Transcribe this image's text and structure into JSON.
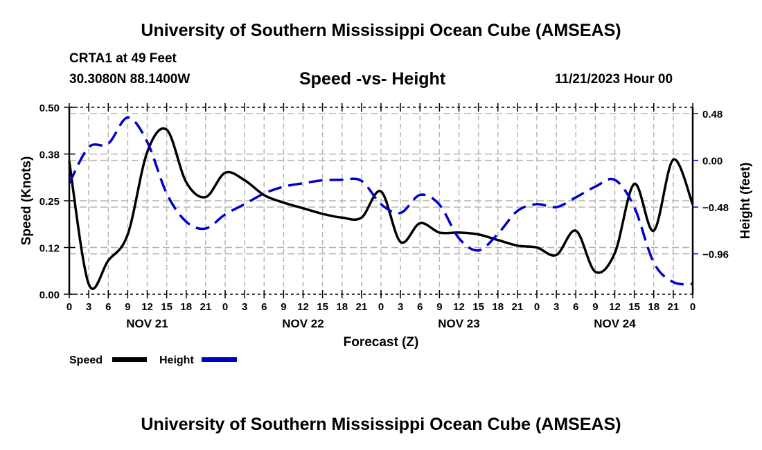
{
  "header": {
    "main_title": "University of Southern Mississippi Ocean Cube (AMSEAS)",
    "station": "CRTA1 at 49 Feet",
    "coords": "30.3080N  88.1400W",
    "chart_title": "Speed -vs- Height",
    "date": "11/21/2023 Hour 00"
  },
  "footer": {
    "title": "University of Southern Mississippi Ocean Cube (AMSEAS)"
  },
  "colors": {
    "speed": "#000000",
    "height": "#0000cc",
    "grid": "#b4b4b4"
  },
  "chart_data": {
    "type": "line",
    "title": "Speed -vs- Height",
    "xlabel": "Forecast (Z)",
    "ylabel": "Speed (Knots)",
    "y2label": "Height (feet)",
    "x_hours": [
      0,
      3,
      6,
      9,
      12,
      15,
      18,
      21,
      24,
      27,
      30,
      33,
      36,
      39,
      42,
      45,
      48,
      51,
      54,
      57,
      60,
      63,
      66,
      69,
      72,
      75,
      78,
      81,
      84,
      87,
      90,
      93,
      96
    ],
    "x_tick_labels": [
      "0",
      "3",
      "6",
      "9",
      "12",
      "15",
      "18",
      "21",
      "0",
      "3",
      "6",
      "9",
      "12",
      "15",
      "18",
      "21",
      "0",
      "3",
      "6",
      "9",
      "12",
      "15",
      "18",
      "21",
      "0",
      "3",
      "6",
      "9",
      "12",
      "15",
      "18",
      "21",
      "0"
    ],
    "day_labels": [
      {
        "label": "NOV 21",
        "center_hour": 12
      },
      {
        "label": "NOV 22",
        "center_hour": 36
      },
      {
        "label": "NOV 23",
        "center_hour": 60
      },
      {
        "label": "NOV 24",
        "center_hour": 84
      }
    ],
    "xlim": [
      0,
      96
    ],
    "ylim": [
      0,
      0.5
    ],
    "y_ticks": [
      0.0,
      0.125,
      0.25,
      0.375,
      0.5
    ],
    "y_tick_labels": [
      "0.00",
      "0.12",
      "0.25",
      "0.38",
      "0.50"
    ],
    "y2lim": [
      -1.375,
      0.545
    ],
    "y2_ticks": [
      0.48,
      0.0,
      -0.48,
      -0.96
    ],
    "y2_tick_labels": [
      "0.48",
      "0.00",
      "−0.48",
      "−0.96"
    ],
    "grid": true,
    "legend": "bottom-left",
    "series": [
      {
        "name": "Speed",
        "axis": "left",
        "style": "solid",
        "values": [
          0.355,
          0.027,
          0.09,
          0.16,
          0.38,
          0.44,
          0.3,
          0.26,
          0.325,
          0.305,
          0.265,
          0.245,
          0.23,
          0.215,
          0.205,
          0.205,
          0.275,
          0.14,
          0.19,
          0.165,
          0.165,
          0.16,
          0.145,
          0.13,
          0.125,
          0.105,
          0.17,
          0.06,
          0.11,
          0.295,
          0.17,
          0.36,
          0.24
        ]
      },
      {
        "name": "Height",
        "axis": "right",
        "style": "dashed",
        "values": [
          -0.235,
          0.135,
          0.17,
          0.44,
          0.19,
          -0.34,
          -0.63,
          -0.7,
          -0.555,
          -0.45,
          -0.34,
          -0.27,
          -0.235,
          -0.205,
          -0.2,
          -0.21,
          -0.45,
          -0.54,
          -0.355,
          -0.455,
          -0.8,
          -0.925,
          -0.755,
          -0.52,
          -0.45,
          -0.48,
          -0.38,
          -0.27,
          -0.2,
          -0.48,
          -1.05,
          -1.25,
          -1.27
        ]
      }
    ]
  }
}
